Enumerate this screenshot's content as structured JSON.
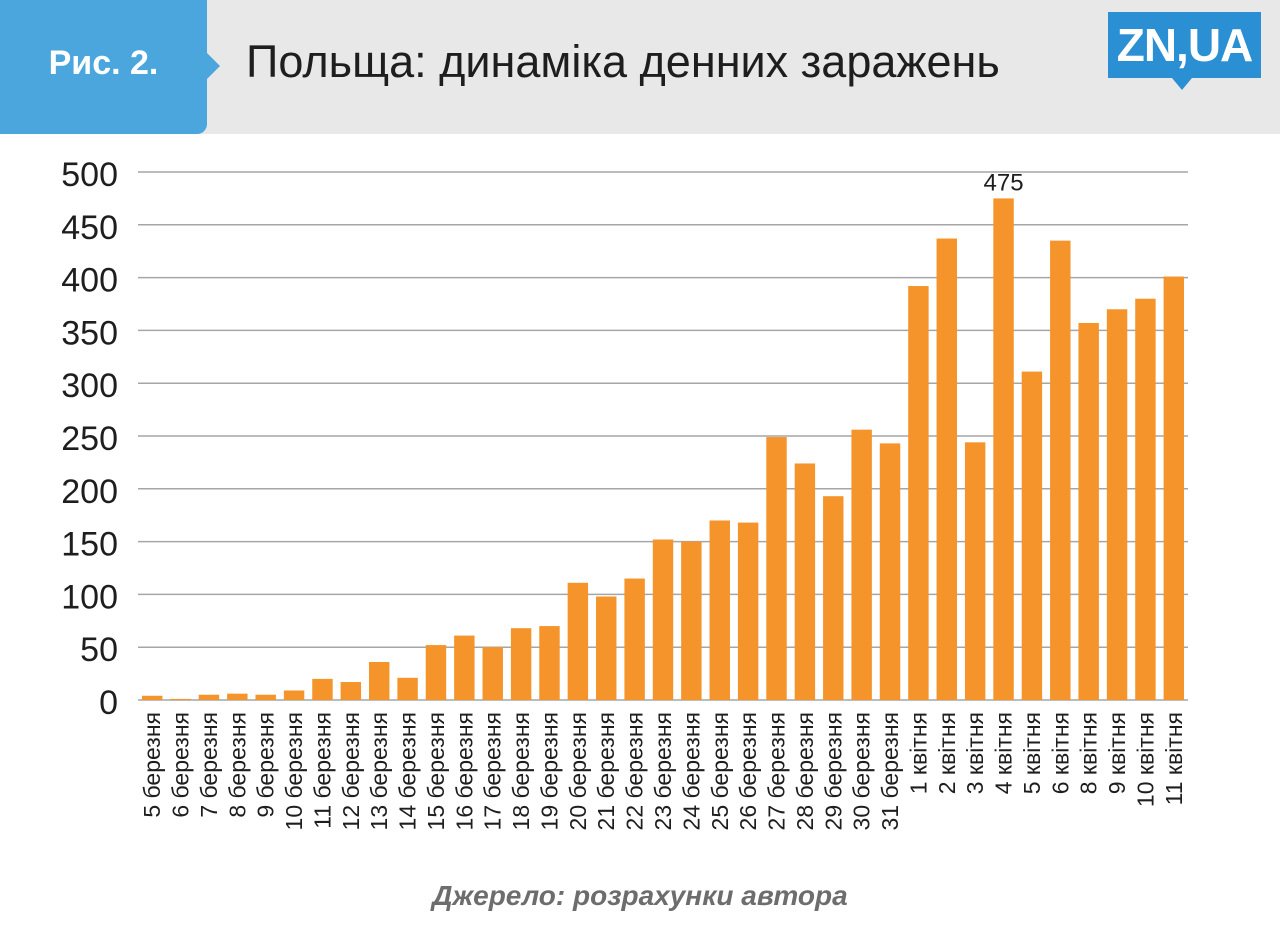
{
  "header": {
    "figure_label": "Рис. 2.",
    "title": "Польща: динаміка денних заражень",
    "logo": "ZN,UA"
  },
  "source": "Джерело: розрахунки автора",
  "colors": {
    "bar": "#f5942a",
    "grid": "#a6a6a6",
    "header_bg": "#e8e8e8",
    "tab": "#4aa6dc",
    "logo": "#2a8fd3"
  },
  "chart_data": {
    "type": "bar",
    "categories": [
      "5 березня",
      "6 березня",
      "7 березня",
      "8 березня",
      "9 березня",
      "10 березня",
      "11 березня",
      "12 березня",
      "13 березня",
      "14 березня",
      "15 березня",
      "16 березня",
      "17 березня",
      "18 березня",
      "19 березня",
      "20 березня",
      "21 березня",
      "22 березня",
      "23 березня",
      "24 березня",
      "25 березня",
      "26 березня",
      "27 березня",
      "28 березня",
      "29 березня",
      "30 березня",
      "31 березня",
      "1 квітня",
      "2 квітня",
      "3 квітня",
      "4 квітня",
      "5 квітня",
      "6 квітня",
      "8 квітня",
      "9 квітня",
      "10 квітня",
      "11 квітня"
    ],
    "values": [
      4,
      1,
      5,
      6,
      5,
      9,
      20,
      17,
      36,
      21,
      52,
      61,
      50,
      68,
      70,
      111,
      98,
      115,
      152,
      150,
      170,
      168,
      249,
      224,
      193,
      256,
      243,
      392,
      437,
      244,
      475,
      311,
      435,
      357,
      370,
      380,
      401
    ],
    "ylim": [
      0,
      500
    ],
    "yticks": [
      0,
      50,
      100,
      150,
      200,
      250,
      300,
      350,
      400,
      450,
      500
    ],
    "grid": true,
    "data_labels": [
      {
        "index": 30,
        "text": "475"
      }
    ]
  }
}
